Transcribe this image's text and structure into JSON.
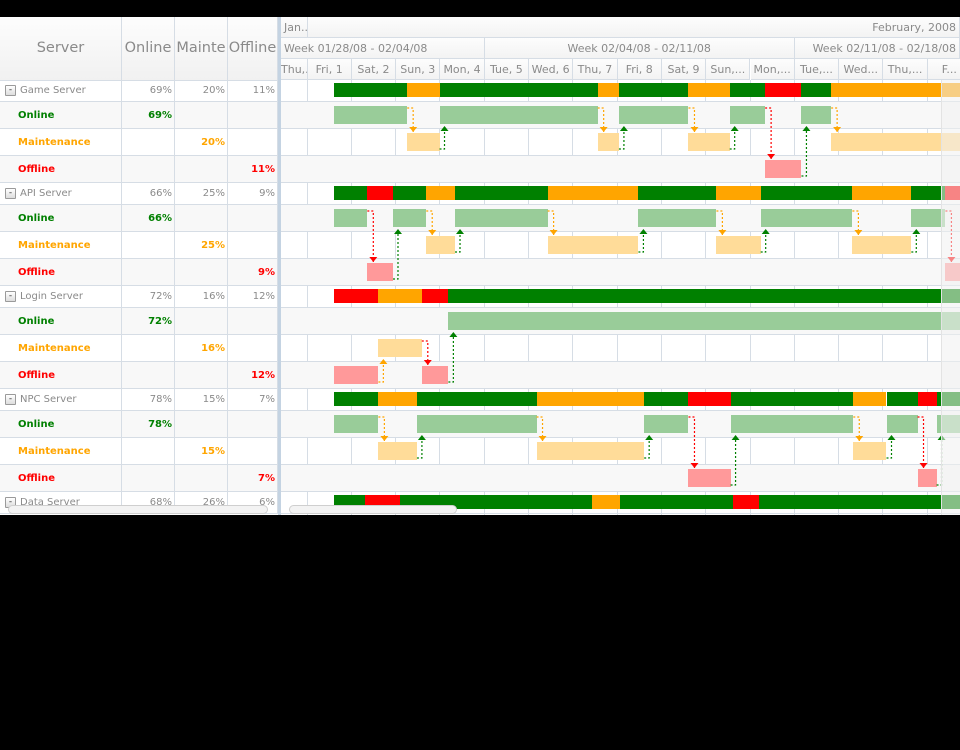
{
  "grid": {
    "columns": [
      {
        "key": "server",
        "label": "Server",
        "width": 122
      },
      {
        "key": "online",
        "label": "Online",
        "width": 53
      },
      {
        "key": "maintenance",
        "label": "Mainte",
        "width": 53
      },
      {
        "key": "offline",
        "label": "Offline",
        "width": 50
      }
    ],
    "toggle_glyph": "-"
  },
  "timeline": {
    "month_headers": [
      {
        "label": "Jan...",
        "from": -1,
        "to": 0,
        "align": "left"
      },
      {
        "label": "February, 2008",
        "from": 0,
        "to": 17,
        "align": "right"
      }
    ],
    "week_headers": [
      {
        "label": "Week 01/28/08 - 02/04/08",
        "from": -1,
        "to": 4,
        "align": "left"
      },
      {
        "label": "Week 02/04/08 - 02/11/08",
        "from": 4,
        "to": 11,
        "align": "center"
      },
      {
        "label": "Week 02/11/08 - 02/18/08",
        "from": 11,
        "to": 18,
        "align": "right"
      }
    ],
    "day_headers": [
      "Thu,...",
      "Fri, 1",
      "Sat, 2",
      "Sun, 3",
      "Mon, 4",
      "Tue, 5",
      "Wed, 6",
      "Thu, 7",
      "Fri, 8",
      "Sat, 9",
      "Sun,...",
      "Mon,...",
      "Tue,...",
      "Wed...",
      "Thu,...",
      "F..."
    ],
    "day_width": 44.3,
    "colors": {
      "online": "#008000",
      "maintenance": "#ffa500",
      "offline": "#ff0000",
      "online_light": "#99cc99",
      "maintenance_light": "#ffdc99",
      "offline_light": "#ff999a"
    }
  },
  "servers": [
    {
      "name": "Game Server",
      "online": "69%",
      "maintenance": "20%",
      "offline": "11%",
      "children": [
        {
          "name": "Online",
          "status": "online",
          "value": "69%"
        },
        {
          "name": "Maintenance",
          "status": "maintenance",
          "value": "20%"
        },
        {
          "name": "Offline",
          "status": "offline",
          "value": "11%"
        }
      ],
      "segments": [
        [
          "online",
          0.6,
          2.25
        ],
        [
          "maintenance",
          2.25,
          2.98
        ],
        [
          "online",
          2.98,
          6.55
        ],
        [
          "maintenance",
          6.55,
          7.03
        ],
        [
          "online",
          7.03,
          8.6
        ],
        [
          "maintenance",
          8.6,
          9.53
        ],
        [
          "online",
          9.53,
          10.33
        ],
        [
          "offline",
          10.33,
          11.15
        ],
        [
          "online",
          11.15,
          11.82
        ],
        [
          "maintenance",
          11.82,
          14.88
        ],
        [
          "online",
          14.88,
          15.5
        ],
        [
          "maintenance",
          15.5,
          16.5
        ]
      ]
    },
    {
      "name": "API Server",
      "online": "66%",
      "maintenance": "25%",
      "offline": "9%",
      "children": [
        {
          "name": "Online",
          "status": "online",
          "value": "66%"
        },
        {
          "name": "Maintenance",
          "status": "maintenance",
          "value": "25%"
        },
        {
          "name": "Offline",
          "status": "offline",
          "value": "9%"
        }
      ],
      "segments": [
        [
          "online",
          0.6,
          1.35
        ],
        [
          "offline",
          1.35,
          1.93
        ],
        [
          "online",
          1.93,
          2.68
        ],
        [
          "maintenance",
          2.68,
          3.33
        ],
        [
          "online",
          3.33,
          5.42
        ],
        [
          "maintenance",
          5.42,
          7.47
        ],
        [
          "online",
          7.47,
          9.23
        ],
        [
          "maintenance",
          9.23,
          10.23
        ],
        [
          "online",
          10.23,
          12.3
        ],
        [
          "maintenance",
          12.3,
          13.63
        ],
        [
          "online",
          13.63,
          14.4
        ],
        [
          "offline",
          14.4,
          15.15
        ],
        [
          "online",
          15.15,
          16.5
        ]
      ]
    },
    {
      "name": "Login Server",
      "online": "72%",
      "maintenance": "16%",
      "offline": "12%",
      "children": [
        {
          "name": "Online",
          "status": "online",
          "value": "72%"
        },
        {
          "name": "Maintenance",
          "status": "maintenance",
          "value": "16%"
        },
        {
          "name": "Offline",
          "status": "offline",
          "value": "12%"
        }
      ],
      "segments": [
        [
          "offline",
          0.6,
          1.6
        ],
        [
          "maintenance",
          1.6,
          2.58
        ],
        [
          "offline",
          2.58,
          3.18
        ],
        [
          "online",
          3.18,
          16.5
        ]
      ]
    },
    {
      "name": "NPC Server",
      "online": "78%",
      "maintenance": "15%",
      "offline": "7%",
      "children": [
        {
          "name": "Online",
          "status": "online",
          "value": "78%"
        },
        {
          "name": "Maintenance",
          "status": "maintenance",
          "value": "15%"
        },
        {
          "name": "Offline",
          "status": "offline",
          "value": "7%"
        }
      ],
      "segments": [
        [
          "online",
          0.6,
          1.6
        ],
        [
          "maintenance",
          1.6,
          2.47
        ],
        [
          "online",
          2.47,
          5.17
        ],
        [
          "maintenance",
          5.17,
          7.6
        ],
        [
          "online",
          7.6,
          8.6
        ],
        [
          "offline",
          8.6,
          9.55
        ],
        [
          "online",
          9.55,
          12.32
        ],
        [
          "maintenance",
          12.32,
          13.07
        ],
        [
          "online",
          13.07,
          13.77
        ],
        [
          "offline",
          13.77,
          14.2
        ],
        [
          "online",
          14.2,
          16.5
        ]
      ]
    },
    {
      "name": "Data Server",
      "online": "68%",
      "maintenance": "26%",
      "offline": "6%",
      "children": [],
      "segments": [
        [
          "online",
          0.6,
          1.3
        ],
        [
          "offline",
          1.3,
          2.08
        ],
        [
          "online",
          2.08,
          6.42
        ],
        [
          "maintenance",
          6.42,
          7.05
        ],
        [
          "online",
          7.05,
          9.6
        ],
        [
          "offline",
          9.6,
          10.2
        ],
        [
          "online",
          10.2,
          16.5
        ]
      ]
    }
  ]
}
